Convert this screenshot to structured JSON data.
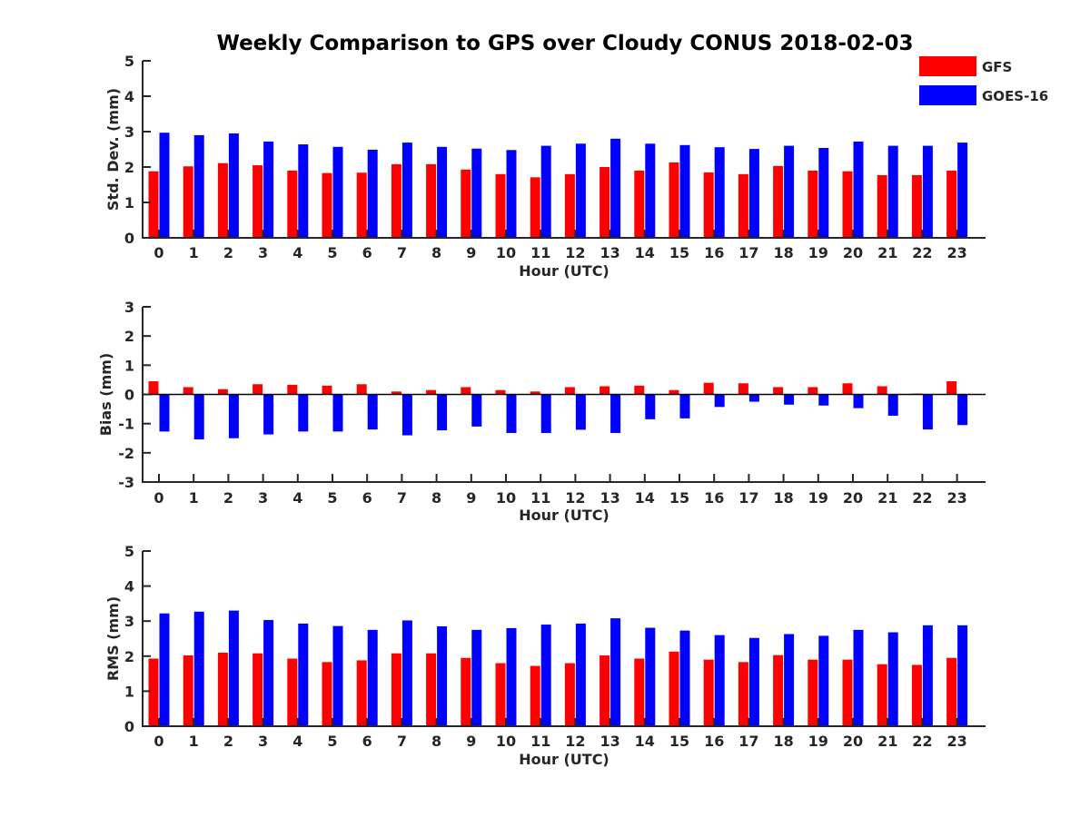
{
  "figure": {
    "title": "Weekly Comparison to GPS over Cloudy CONUS 2018-02-03"
  },
  "legend": {
    "placement": "top-right",
    "entries": [
      {
        "label": "GFS",
        "color": "#ff0000"
      },
      {
        "label": "GOES-16",
        "color": "#0000ff"
      }
    ]
  },
  "chart_data": [
    {
      "type": "bar",
      "title": "",
      "xlabel": "Hour (UTC)",
      "ylabel": "Std. Dev. (mm)",
      "ylim": [
        0,
        5
      ],
      "yticks": [
        0,
        1,
        2,
        3,
        4,
        5
      ],
      "categories": [
        "0",
        "1",
        "2",
        "3",
        "4",
        "5",
        "6",
        "7",
        "8",
        "9",
        "10",
        "11",
        "12",
        "13",
        "14",
        "15",
        "16",
        "17",
        "18",
        "19",
        "20",
        "21",
        "22",
        "23"
      ],
      "series": [
        {
          "name": "GFS",
          "color": "#ff0000",
          "values": [
            1.88,
            2.02,
            2.11,
            2.05,
            1.9,
            1.83,
            1.84,
            2.08,
            2.08,
            1.93,
            1.8,
            1.71,
            1.8,
            2.0,
            1.9,
            2.13,
            1.85,
            1.8,
            2.03,
            1.9,
            1.88,
            1.77,
            1.77,
            1.9
          ]
        },
        {
          "name": "GOES-16",
          "color": "#0000ff",
          "values": [
            2.97,
            2.9,
            2.95,
            2.72,
            2.64,
            2.57,
            2.49,
            2.69,
            2.57,
            2.52,
            2.48,
            2.6,
            2.66,
            2.8,
            2.66,
            2.62,
            2.56,
            2.51,
            2.6,
            2.54,
            2.72,
            2.6,
            2.6,
            2.69
          ]
        }
      ]
    },
    {
      "type": "bar",
      "title": "",
      "xlabel": "Hour (UTC)",
      "ylabel": "Bias (mm)",
      "ylim": [
        -3,
        3
      ],
      "yticks": [
        -3,
        -2,
        -1,
        0,
        1,
        2,
        3
      ],
      "categories": [
        "0",
        "1",
        "2",
        "3",
        "4",
        "5",
        "6",
        "7",
        "8",
        "9",
        "10",
        "11",
        "12",
        "13",
        "14",
        "15",
        "16",
        "17",
        "18",
        "19",
        "20",
        "21",
        "22",
        "23"
      ],
      "series": [
        {
          "name": "GFS",
          "color": "#ff0000",
          "values": [
            0.45,
            0.25,
            0.18,
            0.35,
            0.33,
            0.3,
            0.35,
            0.1,
            0.15,
            0.25,
            0.15,
            0.1,
            0.25,
            0.28,
            0.3,
            0.15,
            0.4,
            0.38,
            0.25,
            0.25,
            0.38,
            0.28,
            0.03,
            0.45
          ]
        },
        {
          "name": "GOES-16",
          "color": "#0000ff",
          "values": [
            -1.27,
            -1.54,
            -1.5,
            -1.37,
            -1.27,
            -1.27,
            -1.2,
            -1.4,
            -1.23,
            -1.1,
            -1.32,
            -1.32,
            -1.21,
            -1.32,
            -0.85,
            -0.82,
            -0.43,
            -0.25,
            -0.35,
            -0.38,
            -0.47,
            -0.73,
            -1.2,
            -1.05
          ]
        }
      ]
    },
    {
      "type": "bar",
      "title": "",
      "xlabel": "Hour (UTC)",
      "ylabel": "RMS (mm)",
      "ylim": [
        0,
        5
      ],
      "yticks": [
        0,
        1,
        2,
        3,
        4,
        5
      ],
      "categories": [
        "0",
        "1",
        "2",
        "3",
        "4",
        "5",
        "6",
        "7",
        "8",
        "9",
        "10",
        "11",
        "12",
        "13",
        "14",
        "15",
        "16",
        "17",
        "18",
        "19",
        "20",
        "21",
        "22",
        "23"
      ],
      "series": [
        {
          "name": "GFS",
          "color": "#ff0000",
          "values": [
            1.93,
            2.02,
            2.1,
            2.08,
            1.93,
            1.83,
            1.88,
            2.08,
            2.08,
            1.95,
            1.8,
            1.72,
            1.8,
            2.02,
            1.93,
            2.13,
            1.9,
            1.83,
            2.03,
            1.9,
            1.9,
            1.77,
            1.75,
            1.95
          ]
        },
        {
          "name": "GOES-16",
          "color": "#0000ff",
          "values": [
            3.22,
            3.27,
            3.3,
            3.03,
            2.93,
            2.86,
            2.75,
            3.02,
            2.85,
            2.75,
            2.8,
            2.9,
            2.93,
            3.08,
            2.81,
            2.73,
            2.6,
            2.52,
            2.63,
            2.58,
            2.75,
            2.68,
            2.88,
            2.88
          ]
        }
      ]
    }
  ]
}
